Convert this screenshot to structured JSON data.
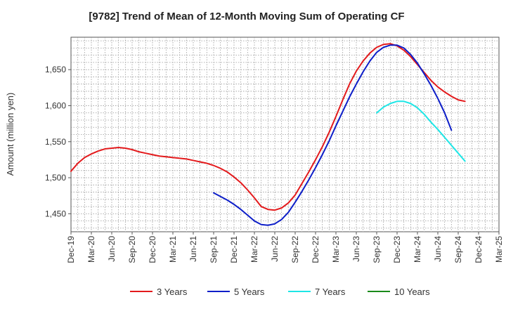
{
  "chart_data": {
    "type": "line",
    "title": "[9782]  Trend of Mean of 12-Month Moving Sum of Operating CF",
    "xlabel": "",
    "ylabel": "Amount (million yen)",
    "ylim": [
      1425,
      1695
    ],
    "yticks": [
      1450,
      1500,
      1550,
      1600,
      1650
    ],
    "ytick_labels": [
      "1,450",
      "1,500",
      "1,550",
      "1,600",
      "1,650"
    ],
    "x_start": "Dec-19",
    "x_months_total": 63,
    "xtick_labels": [
      "Dec-19",
      "Mar-20",
      "Jun-20",
      "Sep-20",
      "Dec-20",
      "Mar-21",
      "Jun-21",
      "Sep-21",
      "Dec-21",
      "Mar-22",
      "Jun-22",
      "Sep-22",
      "Dec-22",
      "Mar-23",
      "Jun-23",
      "Sep-23",
      "Dec-23",
      "Mar-24",
      "Jun-24",
      "Sep-24",
      "Dec-24",
      "Mar-25"
    ],
    "grid": true,
    "legend_position": "bottom",
    "series": [
      {
        "name": "3 Years",
        "color": "#e31a1c",
        "start_index": 0,
        "values": [
          1509,
          1520,
          1528,
          1533,
          1537,
          1540,
          1541,
          1542,
          1541,
          1539,
          1536,
          1534,
          1532,
          1530,
          1529,
          1528,
          1527,
          1526,
          1524,
          1522,
          1520,
          1517,
          1513,
          1508,
          1501,
          1493,
          1483,
          1472,
          1460,
          1456,
          1455,
          1458,
          1465,
          1476,
          1492,
          1508,
          1525,
          1543,
          1563,
          1585,
          1608,
          1630,
          1648,
          1662,
          1673,
          1681,
          1685,
          1686,
          1683,
          1677,
          1668,
          1657,
          1646,
          1635,
          1626,
          1619,
          1613,
          1608,
          1606
        ]
      },
      {
        "name": "5 Years",
        "color": "#0d1ec8",
        "start_index": 21,
        "values": [
          1479,
          1474,
          1469,
          1463,
          1456,
          1448,
          1440,
          1435,
          1434,
          1436,
          1442,
          1452,
          1466,
          1481,
          1497,
          1514,
          1532,
          1551,
          1572,
          1592,
          1612,
          1630,
          1647,
          1662,
          1674,
          1681,
          1684,
          1684,
          1680,
          1671,
          1659,
          1644,
          1628,
          1610,
          1590,
          1566
        ]
      },
      {
        "name": "7 Years",
        "color": "#1ee6e6",
        "start_index": 45,
        "values": [
          1590,
          1598,
          1603,
          1606,
          1606,
          1603,
          1597,
          1588,
          1577,
          1567,
          1556,
          1545,
          1534,
          1523
        ]
      },
      {
        "name": "10 Years",
        "color": "#1a8a1a",
        "start_index": 0,
        "values": []
      }
    ]
  }
}
